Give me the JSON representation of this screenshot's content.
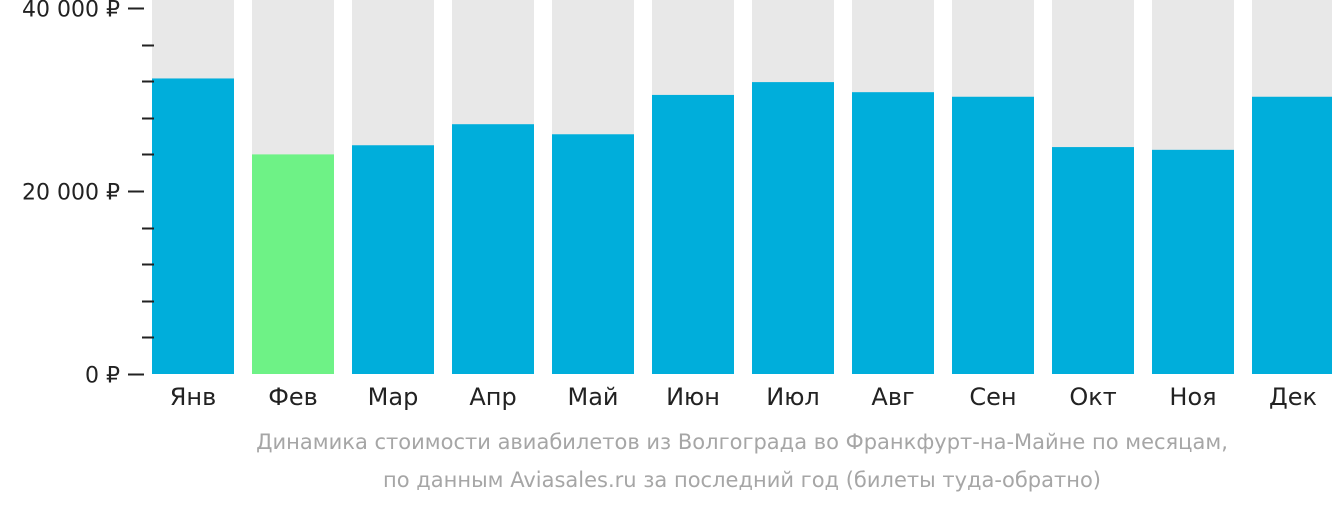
{
  "chart_data": {
    "type": "bar",
    "categories": [
      "Янв",
      "Фев",
      "Мар",
      "Апр",
      "Май",
      "Июн",
      "Июл",
      "Авг",
      "Сен",
      "Окт",
      "Ноя",
      "Дек"
    ],
    "values": [
      32300,
      24000,
      25000,
      27300,
      26200,
      30500,
      31900,
      30800,
      30300,
      24800,
      24500,
      30300
    ],
    "ylim": [
      0,
      40000
    ],
    "y_tick_labels": [
      {
        "value": 40000,
        "label": "40 000 ₽"
      },
      {
        "value": 20000,
        "label": "20 000 ₽"
      },
      {
        "value": 0,
        "label": "0 ₽"
      }
    ],
    "y_minor_step": 4000,
    "highlight_index": 1,
    "grid": false,
    "legend": "none",
    "colors": {
      "bar": "#00aedb",
      "highlight": "#6ef286",
      "background_bar": "#e8e8e8",
      "axis": "#222222",
      "text": "#222222"
    }
  },
  "caption": {
    "line1": "Динамика стоимости авиабилетов из Волгограда во Франкфурт-на-Майне по месяцам,",
    "line2": "по данным Aviasales.ru за последний год (билеты туда-обратно)"
  }
}
